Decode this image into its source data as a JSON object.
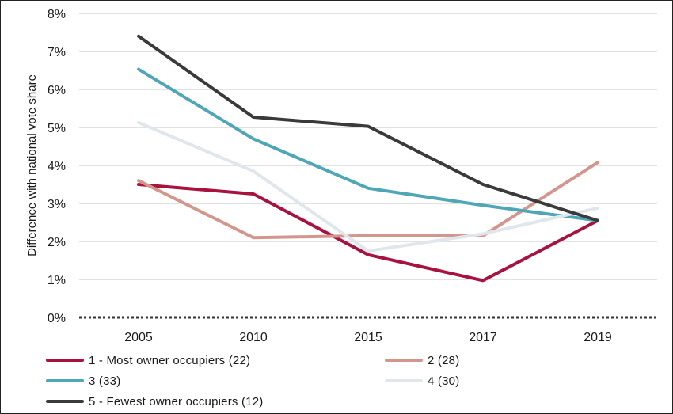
{
  "chart_data": {
    "type": "line",
    "title": "",
    "xlabel": "",
    "ylabel": "Difference with national vote share",
    "x": [
      "2005",
      "2010",
      "2015",
      "2017",
      "2019"
    ],
    "ylim": [
      0,
      8
    ],
    "yticks": [
      "0%",
      "1%",
      "2%",
      "3%",
      "4%",
      "5%",
      "6%",
      "7%",
      "8%"
    ],
    "grid": true,
    "zero_line": "dotted",
    "legend_position": "bottom",
    "series": [
      {
        "name": "1 - Most owner occupiers (22)",
        "color": "#a8123e",
        "values": [
          3.5,
          3.25,
          1.65,
          0.97,
          2.55
        ]
      },
      {
        "name": "2 (28)",
        "color": "#d4958c",
        "values": [
          3.6,
          2.1,
          2.15,
          2.15,
          4.08
        ]
      },
      {
        "name": "3 (33)",
        "color": "#4ea6b7",
        "values": [
          6.53,
          4.7,
          3.4,
          2.95,
          2.55
        ]
      },
      {
        "name": "4 (30)",
        "color": "#dfe7ec",
        "values": [
          5.13,
          3.85,
          1.75,
          2.2,
          2.88
        ]
      },
      {
        "name": "5 - Fewest owner occupiers (12)",
        "color": "#3a3a3a",
        "values": [
          7.4,
          5.27,
          5.03,
          3.5,
          2.55
        ]
      }
    ]
  }
}
